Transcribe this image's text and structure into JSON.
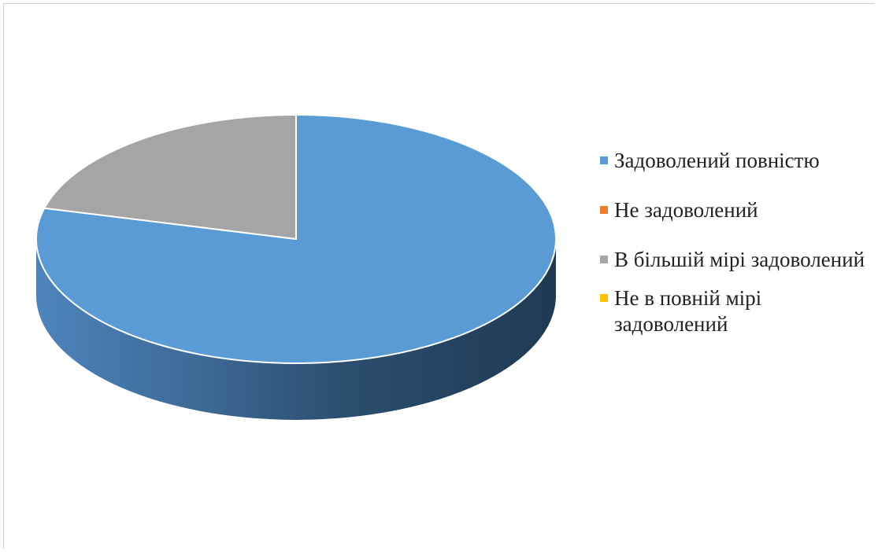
{
  "chart_data": {
    "type": "pie",
    "title": "",
    "categories": [
      "Задоволений повністю",
      "Не задоволений",
      "В більшій мірі задоволений",
      "Не в повній мірі задоволений"
    ],
    "values": [
      79,
      0,
      21,
      0
    ],
    "colors": [
      "#5b9bd5",
      "#ed7d31",
      "#a5a5a5",
      "#ffc000"
    ],
    "legend_position": "right",
    "style": "3d"
  },
  "legend": {
    "items": [
      {
        "label": "Задоволений повністю",
        "color": "#5b9bd5"
      },
      {
        "label": "Не задоволений",
        "color": "#ed7d31"
      },
      {
        "label": "В більшій мірі задоволений",
        "color": "#a5a5a5"
      },
      {
        "label": "Не в повній мірі задоволений",
        "color": "#ffc000"
      }
    ]
  }
}
